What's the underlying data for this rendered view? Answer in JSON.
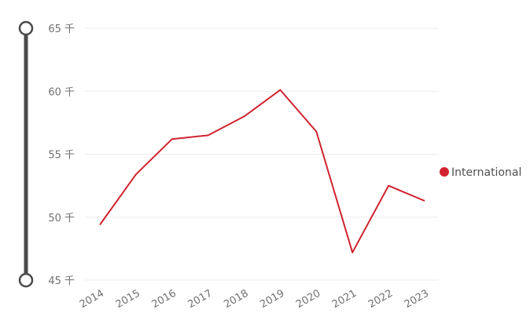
{
  "chart_data": {
    "type": "line",
    "title": "",
    "xlabel": "",
    "ylabel": "",
    "x": [
      "2014",
      "2015",
      "2016",
      "2017",
      "2018",
      "2019",
      "2020",
      "2021",
      "2022",
      "2023"
    ],
    "series": [
      {
        "name": "International",
        "color": "#d0232f",
        "values": [
          49.4,
          53.4,
          56.2,
          56.5,
          58.0,
          60.1,
          56.8,
          47.2,
          52.5,
          51.3
        ]
      }
    ],
    "ylim": [
      45,
      65
    ],
    "y_ticks": [
      {
        "value": 65,
        "label": "65 千"
      },
      {
        "value": 60,
        "label": "60 千"
      },
      {
        "value": 55,
        "label": "55 千"
      },
      {
        "value": 50,
        "label": "50 千"
      },
      {
        "value": 45,
        "label": "45 千"
      }
    ],
    "grid": true,
    "legend_position": "right",
    "range_slider": {
      "start": 45,
      "end": 65
    }
  }
}
